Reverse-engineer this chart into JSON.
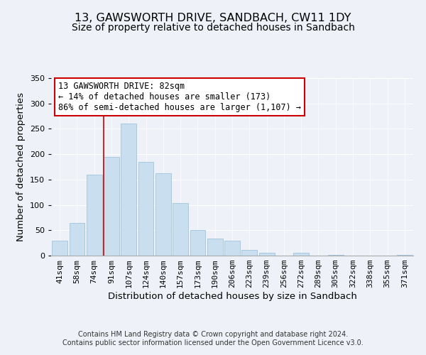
{
  "title": "13, GAWSWORTH DRIVE, SANDBACH, CW11 1DY",
  "subtitle": "Size of property relative to detached houses in Sandbach",
  "xlabel": "Distribution of detached houses by size in Sandbach",
  "ylabel": "Number of detached properties",
  "bar_labels": [
    "41sqm",
    "58sqm",
    "74sqm",
    "91sqm",
    "107sqm",
    "124sqm",
    "140sqm",
    "157sqm",
    "173sqm",
    "190sqm",
    "206sqm",
    "223sqm",
    "239sqm",
    "256sqm",
    "272sqm",
    "289sqm",
    "305sqm",
    "322sqm",
    "338sqm",
    "355sqm",
    "371sqm"
  ],
  "bar_values": [
    30,
    65,
    160,
    195,
    260,
    185,
    163,
    103,
    50,
    33,
    30,
    11,
    5,
    0,
    5,
    0,
    2,
    0,
    0,
    0,
    2
  ],
  "bar_color": "#c9dff0",
  "bar_edge_color": "#a0c4dc",
  "vline_x_index": 3,
  "vline_color": "#cc0000",
  "annotation_line1": "13 GAWSWORTH DRIVE: 82sqm",
  "annotation_line2": "← 14% of detached houses are smaller (173)",
  "annotation_line3": "86% of semi-detached houses are larger (1,107) →",
  "annotation_box_color": "#ffffff",
  "annotation_box_edge": "#cc0000",
  "ylim": [
    0,
    350
  ],
  "yticks": [
    0,
    50,
    100,
    150,
    200,
    250,
    300,
    350
  ],
  "footer_line1": "Contains HM Land Registry data © Crown copyright and database right 2024.",
  "footer_line2": "Contains public sector information licensed under the Open Government Licence v3.0.",
  "background_color": "#eef2f8",
  "plot_background": "#eef2f8",
  "title_fontsize": 11.5,
  "subtitle_fontsize": 10,
  "axis_label_fontsize": 9.5,
  "tick_fontsize": 8,
  "annotation_fontsize": 8.5,
  "footer_fontsize": 7
}
